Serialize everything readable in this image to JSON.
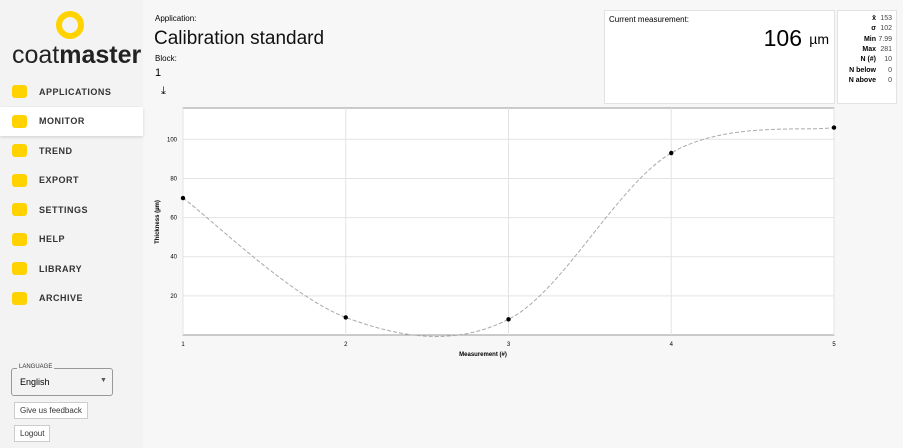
{
  "sidebar": {
    "logo": {
      "light": "coat",
      "bold": "master"
    },
    "menu": [
      "APPLICATIONS",
      "MONITOR",
      "TREND",
      "EXPORT",
      "SETTINGS",
      "HELP",
      "LIBRARY",
      "ARCHIVE"
    ],
    "language": {
      "label": "LANGUAGE",
      "value": "English"
    },
    "feedback": "Give us feedback",
    "logout": "Logout"
  },
  "header": {
    "application_label": "Application:",
    "application": "Calibration standard",
    "block_label": "Block:",
    "block": "1"
  },
  "current": {
    "label": "Current measurement:",
    "value": 106,
    "unit": "µm"
  },
  "stats": [
    {
      "label": "x̄",
      "value": 153
    },
    {
      "label": "σ",
      "value": 102
    },
    {
      "label": "Min",
      "value": 7.99
    },
    {
      "label": "Max",
      "value": 281
    },
    {
      "label": "N (#)",
      "value": 10
    },
    {
      "label": "N below",
      "value": 0
    },
    {
      "label": "N above",
      "value": 0
    }
  ],
  "chart_data": {
    "type": "line",
    "x": [
      1,
      2,
      3,
      4,
      5
    ],
    "values": [
      70,
      9,
      7.99,
      93,
      106
    ],
    "color": "#aaaaaa",
    "xlim": [
      1,
      5
    ],
    "xticks": [
      1,
      2,
      3,
      4,
      5
    ],
    "ylim": [
      0,
      116
    ],
    "yticks": [
      20,
      40,
      60,
      80,
      100
    ],
    "grid": true,
    "xlabel": "Measurement (#)",
    "ylabel": "Thickness (µm)"
  }
}
